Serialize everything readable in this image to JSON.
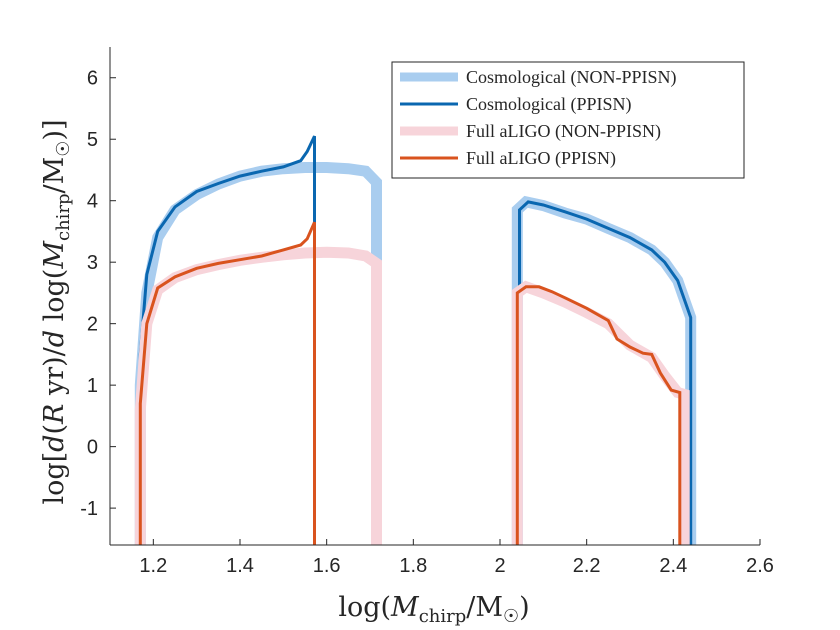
{
  "chart_data": {
    "type": "line",
    "xlabel": "log(M_chirp/M☉)",
    "ylabel": "log[d(R yr)/d log(M_chirp/M☉)]",
    "xlim": [
      1.1,
      2.6
    ],
    "ylim": [
      -1.6,
      6.5
    ],
    "x_ticks": [
      1.2,
      1.4,
      1.6,
      1.8,
      2,
      2.2,
      2.4,
      2.6
    ],
    "y_ticks": [
      -1,
      0,
      1,
      2,
      3,
      4,
      5,
      6
    ],
    "x_tick_labels": [
      "1.2",
      "1.4",
      "1.6",
      "1.8",
      "2",
      "2.2",
      "2.4",
      "2.6"
    ],
    "y_tick_labels": [
      "-1",
      "0",
      "1",
      "2",
      "3",
      "4",
      "5",
      "6"
    ],
    "grid": false,
    "legend_position": "top-right",
    "series": [
      {
        "name": "Cosmological (NON-PPISN)",
        "color": "#a9cdef",
        "style": "thick",
        "segments": [
          [
            [
              1.17,
              -1.6
            ],
            [
              1.17,
              1.0
            ],
            [
              1.185,
              2.5
            ],
            [
              1.21,
              3.4
            ],
            [
              1.25,
              3.85
            ],
            [
              1.3,
              4.1
            ],
            [
              1.35,
              4.27
            ],
            [
              1.4,
              4.4
            ],
            [
              1.45,
              4.48
            ],
            [
              1.5,
              4.52
            ],
            [
              1.55,
              4.54
            ],
            [
              1.6,
              4.54
            ],
            [
              1.65,
              4.52
            ],
            [
              1.69,
              4.48
            ],
            [
              1.715,
              4.3
            ],
            [
              1.715,
              -1.6
            ]
          ],
          [
            [
              2.04,
              -1.6
            ],
            [
              2.04,
              3.85
            ],
            [
              2.06,
              3.98
            ],
            [
              2.1,
              3.92
            ],
            [
              2.15,
              3.8
            ],
            [
              2.2,
              3.7
            ],
            [
              2.25,
              3.55
            ],
            [
              2.3,
              3.4
            ],
            [
              2.35,
              3.2
            ],
            [
              2.38,
              3.0
            ],
            [
              2.41,
              2.7
            ],
            [
              2.44,
              2.1
            ],
            [
              2.44,
              -1.6
            ]
          ]
        ]
      },
      {
        "name": "Cosmological (PPISN)",
        "color": "#0a67b0",
        "style": "normal",
        "segments": [
          [
            [
              1.17,
              0.9
            ],
            [
              1.17,
              1.5
            ],
            [
              1.185,
              2.8
            ],
            [
              1.21,
              3.5
            ],
            [
              1.25,
              3.9
            ],
            [
              1.3,
              4.15
            ],
            [
              1.35,
              4.28
            ],
            [
              1.4,
              4.4
            ],
            [
              1.45,
              4.48
            ],
            [
              1.5,
              4.55
            ],
            [
              1.54,
              4.65
            ],
            [
              1.555,
              4.8
            ],
            [
              1.572,
              5.05
            ],
            [
              1.572,
              -1.6
            ]
          ],
          [
            [
              2.045,
              2.6
            ],
            [
              2.045,
              3.85
            ],
            [
              2.065,
              3.98
            ],
            [
              2.1,
              3.93
            ],
            [
              2.15,
              3.82
            ],
            [
              2.2,
              3.7
            ],
            [
              2.25,
              3.55
            ],
            [
              2.3,
              3.4
            ],
            [
              2.35,
              3.2
            ],
            [
              2.38,
              3.0
            ],
            [
              2.41,
              2.7
            ],
            [
              2.44,
              2.1
            ],
            [
              2.44,
              -1.6
            ]
          ]
        ]
      },
      {
        "name": "Full aLIGO (NON-PPISN)",
        "color": "#f7d4da",
        "style": "thick",
        "segments": [
          [
            [
              1.17,
              -1.6
            ],
            [
              1.17,
              0.6
            ],
            [
              1.185,
              2.0
            ],
            [
              1.21,
              2.55
            ],
            [
              1.25,
              2.75
            ],
            [
              1.3,
              2.88
            ],
            [
              1.35,
              2.96
            ],
            [
              1.4,
              3.03
            ],
            [
              1.45,
              3.08
            ],
            [
              1.5,
              3.12
            ],
            [
              1.55,
              3.15
            ],
            [
              1.6,
              3.16
            ],
            [
              1.65,
              3.15
            ],
            [
              1.69,
              3.1
            ],
            [
              1.715,
              2.98
            ],
            [
              1.715,
              -1.6
            ]
          ],
          [
            [
              2.04,
              -1.6
            ],
            [
              2.04,
              2.5
            ],
            [
              2.06,
              2.6
            ],
            [
              2.1,
              2.5
            ],
            [
              2.15,
              2.35
            ],
            [
              2.2,
              2.18
            ],
            [
              2.25,
              2.0
            ],
            [
              2.3,
              1.65
            ],
            [
              2.35,
              1.45
            ],
            [
              2.38,
              1.15
            ],
            [
              2.41,
              0.88
            ],
            [
              2.425,
              0.85
            ],
            [
              2.425,
              -1.6
            ]
          ]
        ]
      },
      {
        "name": "Full aLIGO (PPISN)",
        "color": "#d9531e",
        "style": "normal",
        "segments": [
          [
            [
              1.17,
              -1.6
            ],
            [
              1.17,
              0.7
            ],
            [
              1.185,
              2.0
            ],
            [
              1.21,
              2.58
            ],
            [
              1.25,
              2.76
            ],
            [
              1.3,
              2.9
            ],
            [
              1.35,
              2.98
            ],
            [
              1.4,
              3.04
            ],
            [
              1.45,
              3.1
            ],
            [
              1.5,
              3.2
            ],
            [
              1.54,
              3.28
            ],
            [
              1.555,
              3.38
            ],
            [
              1.572,
              3.65
            ],
            [
              1.572,
              -1.6
            ]
          ],
          [
            [
              2.04,
              -1.6
            ],
            [
              2.04,
              2.5
            ],
            [
              2.06,
              2.6
            ],
            [
              2.09,
              2.6
            ],
            [
              2.12,
              2.52
            ],
            [
              2.15,
              2.42
            ],
            [
              2.2,
              2.25
            ],
            [
              2.25,
              2.05
            ],
            [
              2.27,
              1.75
            ],
            [
              2.3,
              1.62
            ],
            [
              2.33,
              1.52
            ],
            [
              2.35,
              1.5
            ],
            [
              2.37,
              1.2
            ],
            [
              2.395,
              0.92
            ],
            [
              2.415,
              0.88
            ],
            [
              2.415,
              -1.6
            ]
          ]
        ]
      }
    ]
  }
}
